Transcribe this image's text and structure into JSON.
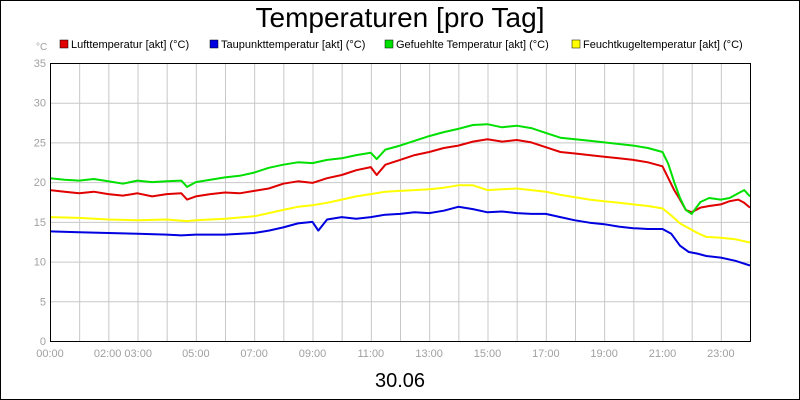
{
  "chart_data": {
    "type": "line",
    "title": "Temperaturen [pro Tag]",
    "ylabel": "°C",
    "xlabel": "30.06",
    "ylim": [
      0,
      35
    ],
    "xlim_hours": [
      0,
      24
    ],
    "yticks": [
      0,
      5,
      10,
      15,
      20,
      25,
      30,
      35
    ],
    "xticks": [
      {
        "h": 0,
        "label": "00:00"
      },
      {
        "h": 2.5,
        "label": "02:00 03:00"
      },
      {
        "h": 5,
        "label": "05:00"
      },
      {
        "h": 7,
        "label": "07:00"
      },
      {
        "h": 9,
        "label": "09:00"
      },
      {
        "h": 11,
        "label": "11:00"
      },
      {
        "h": 13,
        "label": "13:00"
      },
      {
        "h": 15,
        "label": "15:00"
      },
      {
        "h": 17,
        "label": "17:00"
      },
      {
        "h": 19,
        "label": "19:00"
      },
      {
        "h": 21,
        "label": "21:00"
      },
      {
        "h": 23,
        "label": "23:00"
      }
    ],
    "grid": true,
    "legend_position": "top",
    "series": [
      {
        "name": "Lufttemperatur [akt] (°C)",
        "color": "#e00000",
        "points": [
          [
            0,
            19
          ],
          [
            0.5,
            18.8
          ],
          [
            1,
            18.6
          ],
          [
            1.5,
            18.8
          ],
          [
            2,
            18.5
          ],
          [
            2.5,
            18.3
          ],
          [
            3,
            18.6
          ],
          [
            3.5,
            18.2
          ],
          [
            4,
            18.5
          ],
          [
            4.5,
            18.6
          ],
          [
            4.7,
            17.8
          ],
          [
            5,
            18.2
          ],
          [
            5.5,
            18.5
          ],
          [
            6,
            18.7
          ],
          [
            6.5,
            18.6
          ],
          [
            7,
            18.9
          ],
          [
            7.5,
            19.2
          ],
          [
            8,
            19.8
          ],
          [
            8.5,
            20.1
          ],
          [
            9,
            19.9
          ],
          [
            9.5,
            20.5
          ],
          [
            10,
            20.9
          ],
          [
            10.5,
            21.5
          ],
          [
            11,
            21.9
          ],
          [
            11.2,
            20.9
          ],
          [
            11.5,
            22.2
          ],
          [
            12,
            22.8
          ],
          [
            12.5,
            23.4
          ],
          [
            13,
            23.8
          ],
          [
            13.5,
            24.3
          ],
          [
            14,
            24.6
          ],
          [
            14.5,
            25.1
          ],
          [
            15,
            25.4
          ],
          [
            15.5,
            25.1
          ],
          [
            16,
            25.3
          ],
          [
            16.5,
            25
          ],
          [
            17,
            24.4
          ],
          [
            17.5,
            23.8
          ],
          [
            18,
            23.6
          ],
          [
            18.5,
            23.4
          ],
          [
            19,
            23.2
          ],
          [
            19.5,
            23
          ],
          [
            20,
            22.8
          ],
          [
            20.5,
            22.5
          ],
          [
            21,
            22
          ],
          [
            21.2,
            20.5
          ],
          [
            21.4,
            19
          ],
          [
            21.6,
            17.8
          ],
          [
            21.8,
            16.5
          ],
          [
            22,
            16.2
          ],
          [
            22.3,
            16.8
          ],
          [
            22.6,
            17
          ],
          [
            23,
            17.2
          ],
          [
            23.3,
            17.6
          ],
          [
            23.6,
            17.8
          ],
          [
            23.8,
            17.4
          ],
          [
            24,
            16.8
          ]
        ]
      },
      {
        "name": "Taupunkttemperatur [akt] (°C)",
        "color": "#0000e0",
        "points": [
          [
            0,
            13.8
          ],
          [
            1,
            13.7
          ],
          [
            2,
            13.6
          ],
          [
            3,
            13.5
          ],
          [
            4,
            13.4
          ],
          [
            4.5,
            13.3
          ],
          [
            5,
            13.4
          ],
          [
            6,
            13.4
          ],
          [
            7,
            13.6
          ],
          [
            7.5,
            13.9
          ],
          [
            8,
            14.3
          ],
          [
            8.5,
            14.8
          ],
          [
            9,
            15
          ],
          [
            9.2,
            13.9
          ],
          [
            9.5,
            15.3
          ],
          [
            10,
            15.6
          ],
          [
            10.5,
            15.4
          ],
          [
            11,
            15.6
          ],
          [
            11.5,
            15.9
          ],
          [
            12,
            16
          ],
          [
            12.5,
            16.2
          ],
          [
            13,
            16.1
          ],
          [
            13.5,
            16.4
          ],
          [
            14,
            16.9
          ],
          [
            14.5,
            16.6
          ],
          [
            15,
            16.2
          ],
          [
            15.5,
            16.3
          ],
          [
            16,
            16.1
          ],
          [
            16.5,
            16
          ],
          [
            17,
            16
          ],
          [
            17.5,
            15.6
          ],
          [
            18,
            15.2
          ],
          [
            18.5,
            14.9
          ],
          [
            19,
            14.7
          ],
          [
            19.5,
            14.4
          ],
          [
            20,
            14.2
          ],
          [
            20.5,
            14.1
          ],
          [
            21,
            14.1
          ],
          [
            21.3,
            13.5
          ],
          [
            21.6,
            12
          ],
          [
            21.9,
            11.2
          ],
          [
            22.2,
            11
          ],
          [
            22.5,
            10.7
          ],
          [
            23,
            10.5
          ],
          [
            23.5,
            10.1
          ],
          [
            24,
            9.5
          ]
        ]
      },
      {
        "name": "Gefuehlte Temperatur [akt] (°C)",
        "color": "#00e000",
        "points": [
          [
            0,
            20.5
          ],
          [
            0.5,
            20.3
          ],
          [
            1,
            20.2
          ],
          [
            1.5,
            20.4
          ],
          [
            2,
            20.1
          ],
          [
            2.5,
            19.8
          ],
          [
            3,
            20.2
          ],
          [
            3.5,
            20
          ],
          [
            4,
            20.1
          ],
          [
            4.5,
            20.2
          ],
          [
            4.7,
            19.4
          ],
          [
            5,
            20
          ],
          [
            5.5,
            20.3
          ],
          [
            6,
            20.6
          ],
          [
            6.5,
            20.8
          ],
          [
            7,
            21.2
          ],
          [
            7.5,
            21.8
          ],
          [
            8,
            22.2
          ],
          [
            8.5,
            22.5
          ],
          [
            9,
            22.4
          ],
          [
            9.5,
            22.8
          ],
          [
            10,
            23
          ],
          [
            10.5,
            23.4
          ],
          [
            11,
            23.7
          ],
          [
            11.2,
            22.9
          ],
          [
            11.5,
            24.1
          ],
          [
            12,
            24.6
          ],
          [
            12.5,
            25.2
          ],
          [
            13,
            25.8
          ],
          [
            13.5,
            26.3
          ],
          [
            14,
            26.7
          ],
          [
            14.5,
            27.2
          ],
          [
            15,
            27.3
          ],
          [
            15.5,
            26.9
          ],
          [
            16,
            27.1
          ],
          [
            16.5,
            26.8
          ],
          [
            17,
            26.2
          ],
          [
            17.5,
            25.6
          ],
          [
            18,
            25.4
          ],
          [
            18.5,
            25.2
          ],
          [
            19,
            25
          ],
          [
            19.5,
            24.8
          ],
          [
            20,
            24.6
          ],
          [
            20.5,
            24.3
          ],
          [
            21,
            23.8
          ],
          [
            21.2,
            22.3
          ],
          [
            21.4,
            20
          ],
          [
            21.6,
            18
          ],
          [
            21.8,
            16.5
          ],
          [
            22,
            16
          ],
          [
            22.3,
            17.5
          ],
          [
            22.6,
            18
          ],
          [
            23,
            17.8
          ],
          [
            23.3,
            18
          ],
          [
            23.6,
            18.6
          ],
          [
            23.8,
            19
          ],
          [
            24,
            18.2
          ]
        ]
      },
      {
        "name": "Feuchtkugeltemperatur [akt] (°C)",
        "color": "#ffff00",
        "points": [
          [
            0,
            15.6
          ],
          [
            1,
            15.5
          ],
          [
            2,
            15.3
          ],
          [
            3,
            15.2
          ],
          [
            4,
            15.3
          ],
          [
            4.7,
            15.1
          ],
          [
            5,
            15.2
          ],
          [
            6,
            15.4
          ],
          [
            7,
            15.7
          ],
          [
            7.5,
            16.1
          ],
          [
            8,
            16.5
          ],
          [
            8.5,
            16.9
          ],
          [
            9,
            17.1
          ],
          [
            9.5,
            17.4
          ],
          [
            10,
            17.8
          ],
          [
            10.5,
            18.2
          ],
          [
            11,
            18.5
          ],
          [
            11.5,
            18.8
          ],
          [
            12,
            18.9
          ],
          [
            12.5,
            19
          ],
          [
            13,
            19.1
          ],
          [
            13.5,
            19.3
          ],
          [
            14,
            19.6
          ],
          [
            14.5,
            19.6
          ],
          [
            15,
            19
          ],
          [
            15.5,
            19.1
          ],
          [
            16,
            19.2
          ],
          [
            16.5,
            19
          ],
          [
            17,
            18.8
          ],
          [
            17.5,
            18.4
          ],
          [
            18,
            18.1
          ],
          [
            18.5,
            17.8
          ],
          [
            19,
            17.6
          ],
          [
            19.5,
            17.4
          ],
          [
            20,
            17.2
          ],
          [
            20.5,
            17
          ],
          [
            21,
            16.7
          ],
          [
            21.3,
            15.8
          ],
          [
            21.6,
            14.8
          ],
          [
            21.9,
            14.2
          ],
          [
            22.2,
            13.6
          ],
          [
            22.5,
            13.1
          ],
          [
            23,
            13
          ],
          [
            23.5,
            12.8
          ],
          [
            24,
            12.4
          ]
        ]
      }
    ]
  }
}
